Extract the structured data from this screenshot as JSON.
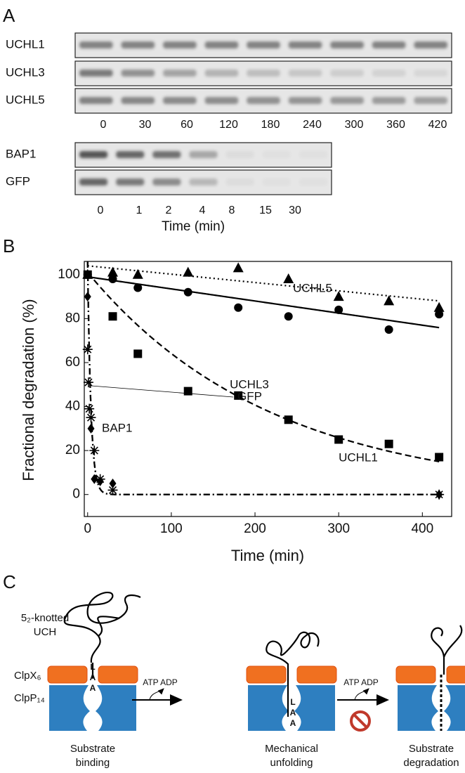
{
  "panels": [
    "A",
    "B",
    "C"
  ],
  "gels": {
    "rows": [
      "UCHL1",
      "UCHL3",
      "UCHL5"
    ],
    "times": [
      "0",
      "30",
      "60",
      "120",
      "180",
      "240",
      "300",
      "360",
      "420"
    ],
    "rows2": [
      "BAP1",
      "GFP"
    ],
    "times2": [
      "0",
      "1",
      "2",
      "4",
      "8",
      "15",
      "30"
    ],
    "xlabel": "Time (min)"
  },
  "chart_data": {
    "type": "scatter",
    "xlabel": "Time (min)",
    "ylabel": "Fractional degradation (%)",
    "xlim": [
      -4,
      435
    ],
    "ylim": [
      -10,
      106
    ],
    "xticks": [
      0,
      100,
      200,
      300,
      400
    ],
    "yticks": [
      0,
      20,
      40,
      60,
      80,
      100
    ],
    "color": "#000000",
    "series": [
      {
        "name": "UCHL1",
        "marker": "circle",
        "x": [
          0,
          30,
          60,
          120,
          180,
          240,
          300,
          360,
          420
        ],
        "values": [
          100,
          98,
          94,
          92,
          85,
          81,
          84,
          75,
          82
        ],
        "fit": {
          "kind": "linear",
          "params": [
            99,
            -0.055
          ],
          "dash": "solid"
        }
      },
      {
        "name": "UCHL3",
        "marker": "square",
        "x": [
          0,
          30,
          60,
          120,
          180,
          240,
          300,
          360,
          420
        ],
        "values": [
          100,
          81,
          64,
          47,
          45,
          34,
          25,
          23,
          17
        ],
        "fit": {
          "kind": "exp",
          "params": [
            101,
            220
          ],
          "dash": "dashed"
        }
      },
      {
        "name": "UCHL5",
        "marker": "triangle",
        "x": [
          0,
          30,
          60,
          120,
          180,
          240,
          300,
          360,
          420
        ],
        "values": [
          100,
          101,
          100,
          101,
          103,
          98,
          90,
          88,
          85
        ],
        "fit": {
          "kind": "linear",
          "params": [
            104,
            -0.038
          ],
          "dash": "dotted"
        }
      },
      {
        "name": "GFP",
        "marker": "star",
        "x": [
          0,
          1,
          2,
          4,
          8,
          15,
          30,
          420
        ],
        "values": [
          66,
          51,
          39,
          35,
          20,
          7,
          2,
          0
        ],
        "fit": {
          "kind": "exp",
          "params": [
            106,
            4
          ],
          "dash": "dashdot"
        }
      },
      {
        "name": "BAP1",
        "marker": "diamond",
        "x": [
          0,
          4,
          8,
          15,
          30,
          420
        ],
        "values": [
          90,
          30,
          7,
          6,
          5,
          0
        ],
        "fit": {
          "kind": "exp",
          "params": [
            106,
            4
          ],
          "dash": "dashdot"
        }
      }
    ]
  },
  "diagram": {
    "substrate": [
      "5₂-knotted",
      "UCH"
    ],
    "clpx": "ClpX₆",
    "clpp": "ClpP₁₄",
    "atp": [
      "ATP ADP",
      "ATP ADP"
    ],
    "tag": [
      "L",
      "A",
      "A"
    ],
    "steps": [
      [
        "Substrate",
        "binding"
      ],
      [
        "Mechanical",
        "unfolding"
      ],
      [
        "Substrate",
        "degradation"
      ]
    ]
  }
}
